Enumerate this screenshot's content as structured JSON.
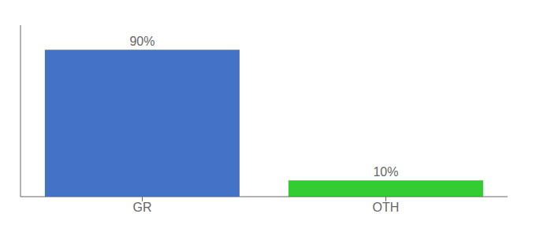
{
  "chart_data": {
    "type": "bar",
    "categories": [
      "GR",
      "OTH"
    ],
    "values": [
      90,
      10
    ],
    "value_labels": [
      "90%",
      "10%"
    ],
    "colors": [
      "#4472c4",
      "#33cc33"
    ],
    "ylim": [
      0,
      105
    ],
    "data_labels": true,
    "tick_labels": "x",
    "grid": false
  }
}
